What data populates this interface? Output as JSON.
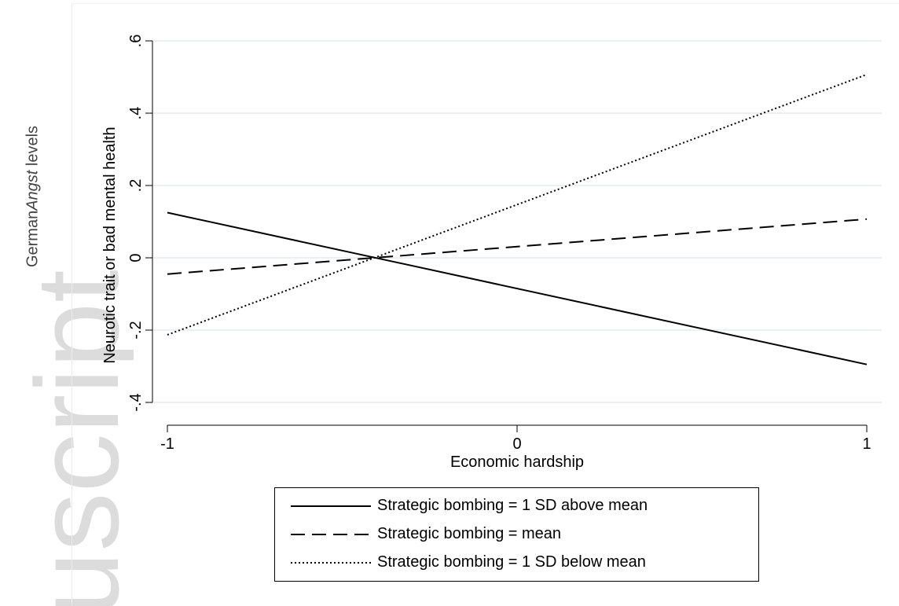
{
  "page": {
    "outer_ylabel_prefix": "German",
    "outer_ylabel_italic": "Angst",
    "outer_ylabel_suffix": " levels",
    "watermark_text": "uscript"
  },
  "chart_data": {
    "type": "line",
    "xlabel": "Economic hardship",
    "ylabel": "Neurotic trait or bad mental health",
    "xlim": [
      -1,
      1
    ],
    "ylim": [
      -0.4,
      0.6
    ],
    "xticks": [
      -1,
      0,
      1
    ],
    "xtick_labels": [
      "-1",
      "0",
      "1"
    ],
    "yticks": [
      -0.4,
      -0.2,
      0,
      0.2,
      0.4,
      0.6
    ],
    "ytick_labels": [
      "-.4",
      "-.2",
      "0",
      ".2",
      ".4",
      ".6"
    ],
    "grid": "horizontal",
    "legend_position": "bottom",
    "series": [
      {
        "name": "Strategic bombing = 1 SD above mean",
        "style": "solid",
        "x": [
          -1,
          1
        ],
        "y": [
          0.125,
          -0.295
        ]
      },
      {
        "name": "Strategic bombing = mean",
        "style": "dashed",
        "x": [
          -1,
          1
        ],
        "y": [
          -0.045,
          0.107
        ]
      },
      {
        "name": "Strategic bombing = 1 SD below mean",
        "style": "dotted",
        "x": [
          -1,
          1
        ],
        "y": [
          -0.213,
          0.507
        ]
      }
    ],
    "colors": {
      "line": "#000000",
      "grid": "#e4ecf0",
      "watermark": "#dcdcdc"
    }
  }
}
